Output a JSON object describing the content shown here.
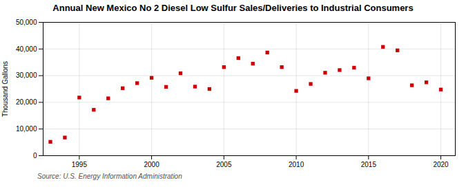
{
  "chart_data": {
    "type": "scatter",
    "title": "Annual New Mexico No 2 Diesel Low Sulfur Sales/Deliveries to Industrial Consumers",
    "ylabel": "Thousand Gallons",
    "annotations": [
      "Source: U.S. Energy Information Administration"
    ],
    "x": [
      1993,
      1994,
      1995,
      1996,
      1997,
      1998,
      1999,
      2000,
      2001,
      2002,
      2003,
      2004,
      2005,
      2006,
      2007,
      2008,
      2009,
      2010,
      2011,
      2012,
      2013,
      2014,
      2015,
      2016,
      2017,
      2018,
      2019,
      2020
    ],
    "values": [
      5200,
      6800,
      21800,
      17200,
      21500,
      25300,
      27200,
      29200,
      25800,
      30900,
      25900,
      25000,
      33200,
      36600,
      34500,
      38700,
      33200,
      24300,
      26900,
      31100,
      32100,
      33000,
      29000,
      40800,
      39500,
      26400,
      27500,
      24800
    ],
    "color": "#cc0000",
    "marker": "square",
    "xlim": [
      1992.5,
      2021
    ],
    "ylim": [
      0,
      50000
    ],
    "xticks": [
      1995,
      2000,
      2005,
      2010,
      2015,
      2020
    ],
    "yticks": [
      0,
      {
        "value": 10000,
        "label": "10,000"
      },
      {
        "value": 20000,
        "label": "20,000"
      },
      {
        "value": 30000,
        "label": "30,000"
      },
      {
        "value": 40000,
        "label": "40,000"
      },
      {
        "value": 50000,
        "label": "50,000"
      }
    ],
    "grid": true
  }
}
